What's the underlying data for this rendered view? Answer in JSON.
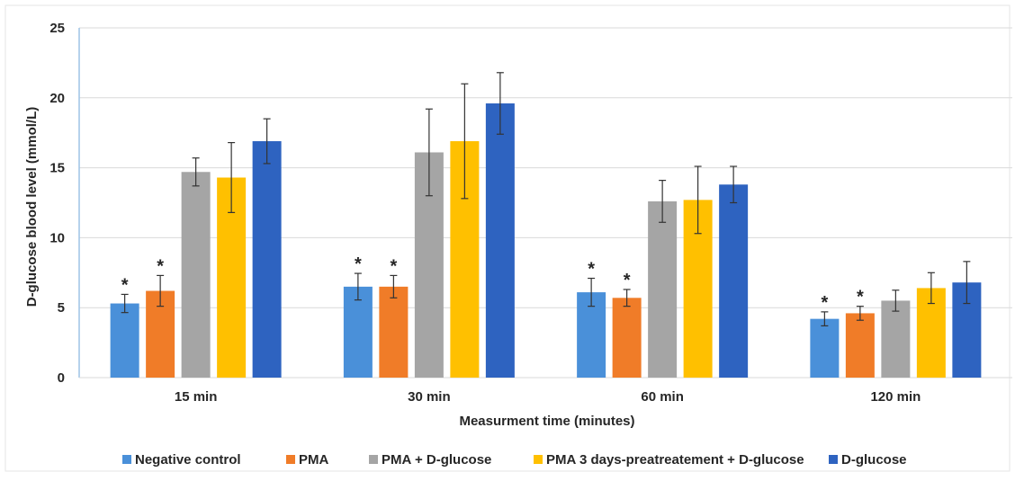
{
  "chart_data": {
    "type": "bar",
    "title": "",
    "xlabel": "Measurment time (minutes)",
    "ylabel": "D-glucose blood level (mmol/L)",
    "ylim": [
      0,
      25
    ],
    "yticks": [
      "0",
      "5",
      "10",
      "15",
      "20",
      "25"
    ],
    "grid": "horizontal",
    "legend_position": "bottom",
    "categories": [
      "15 min",
      "30 min",
      "60 min",
      "120 min"
    ],
    "significance_marker": "*",
    "series": [
      {
        "name": "Negative control",
        "color": "#4A90D9",
        "values": [
          5.3,
          6.5,
          6.1,
          4.2
        ],
        "errors": [
          0.65,
          0.95,
          1.0,
          0.5
        ],
        "significant": [
          true,
          true,
          true,
          true
        ]
      },
      {
        "name": "PMA",
        "color": "#F07C28",
        "values": [
          6.2,
          6.5,
          5.7,
          4.6
        ],
        "errors": [
          1.1,
          0.8,
          0.6,
          0.5
        ],
        "significant": [
          true,
          true,
          true,
          true
        ]
      },
      {
        "name": "PMA + D-glucose",
        "color": "#A5A5A5",
        "values": [
          14.7,
          16.1,
          12.6,
          5.5
        ],
        "errors": [
          1.0,
          3.1,
          1.5,
          0.75
        ],
        "significant": [
          false,
          false,
          false,
          false
        ]
      },
      {
        "name": "PMA 3 days-preatreatement + D-glucose",
        "color": "#FFC000",
        "values": [
          14.3,
          16.9,
          12.7,
          6.4
        ],
        "errors": [
          2.5,
          4.1,
          2.4,
          1.1
        ],
        "significant": [
          false,
          false,
          false,
          false
        ]
      },
      {
        "name": "D-glucose",
        "color": "#2E63C0",
        "values": [
          16.9,
          19.6,
          13.8,
          6.8
        ],
        "errors": [
          1.6,
          2.2,
          1.3,
          1.5
        ],
        "significant": [
          false,
          false,
          false,
          false
        ]
      }
    ]
  }
}
